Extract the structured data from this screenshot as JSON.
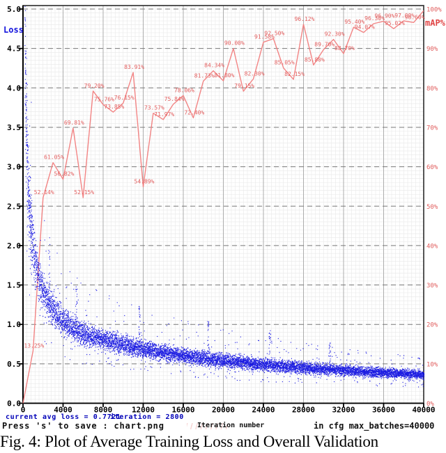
{
  "chart_data": {
    "type": "line+scatter",
    "title": "",
    "x_axis": {
      "label": "Iteration number",
      "min": 0,
      "max": 40000,
      "major_tick_step": 4000,
      "tick_labels": [
        "0",
        "4000",
        "8000",
        "12000",
        "16000",
        "20000",
        "24000",
        "28000",
        "32000",
        "36000",
        "40000"
      ]
    },
    "y_left": {
      "label": "Loss",
      "min": 0.0,
      "max": 5.0,
      "major_tick_step": 0.5,
      "color": "#1414dd",
      "tick_labels": [
        "5.0",
        "4.5",
        "4.0",
        "3.5",
        "3.0",
        "2.5",
        "2.0",
        "1.5",
        "1.0",
        "0.5",
        "0.0"
      ]
    },
    "y_right": {
      "label": "mAP%",
      "min": 0,
      "max": 100,
      "major_tick_step": 10,
      "color": "#e04545",
      "tick_labels": [
        "100%",
        "90%",
        "80%",
        "70%",
        "60%",
        "50%",
        "40%",
        "30%",
        "20%",
        "10%",
        "0%"
      ]
    },
    "grid": {
      "minor_divisions_per_major": 10,
      "minor_color": "#e8e8e8",
      "major_v_color": "#adadad",
      "major_h_color": "#787878",
      "border_color": "#2b2b2b",
      "legend": "none"
    },
    "map_series": {
      "name": "mAP%",
      "color": "#f17d7d",
      "label_color": "#e25d5d",
      "points": [
        {
          "iter": 0,
          "map": 0,
          "label": ""
        },
        {
          "iter": 1000,
          "map": 13.25,
          "label": "13.25%"
        },
        {
          "iter": 2000,
          "map": 52.14,
          "label": "52.14%"
        },
        {
          "iter": 3000,
          "map": 61.05,
          "label": "61.05%"
        },
        {
          "iter": 4000,
          "map": 56.82,
          "label": "56.82%"
        },
        {
          "iter": 5000,
          "map": 69.81,
          "label": "69.81%"
        },
        {
          "iter": 6000,
          "map": 52.15,
          "label": "52.15%"
        },
        {
          "iter": 7000,
          "map": 79.2,
          "label": "79.20%"
        },
        {
          "iter": 8000,
          "map": 75.76,
          "label": "75.76%"
        },
        {
          "iter": 9000,
          "map": 73.85,
          "label": "73.85%"
        },
        {
          "iter": 10000,
          "map": 76.15,
          "label": "76.15%"
        },
        {
          "iter": 11000,
          "map": 83.91,
          "label": "83.91%"
        },
        {
          "iter": 12000,
          "map": 54.89,
          "label": "54.89%"
        },
        {
          "iter": 13000,
          "map": 73.57,
          "label": "73.57%"
        },
        {
          "iter": 14000,
          "map": 71.97,
          "label": "71.97%"
        },
        {
          "iter": 15000,
          "map": 75.84,
          "label": "75.84%"
        },
        {
          "iter": 16000,
          "map": 78.06,
          "label": "78.06%"
        },
        {
          "iter": 17000,
          "map": 72.4,
          "label": "72.40%"
        },
        {
          "iter": 18000,
          "map": 81.73,
          "label": "81.73%"
        },
        {
          "iter": 19000,
          "map": 84.34,
          "label": "84.34%"
        },
        {
          "iter": 20000,
          "map": 81.8,
          "label": "81.80%"
        },
        {
          "iter": 21000,
          "map": 90.0,
          "label": "90.00%"
        },
        {
          "iter": 22000,
          "map": 79.15,
          "label": "79.15%"
        },
        {
          "iter": 23000,
          "map": 82.3,
          "label": "82.30%"
        },
        {
          "iter": 24000,
          "map": 91.58,
          "label": "91.58%"
        },
        {
          "iter": 25000,
          "map": 92.5,
          "label": "92.50%"
        },
        {
          "iter": 26000,
          "map": 85.05,
          "label": "85.05%"
        },
        {
          "iter": 27000,
          "map": 82.15,
          "label": "82.15%"
        },
        {
          "iter": 28000,
          "map": 96.12,
          "label": "96.12%"
        },
        {
          "iter": 29000,
          "map": 85.8,
          "label": "85.80%"
        },
        {
          "iter": 30000,
          "map": 89.7,
          "label": "89.70%"
        },
        {
          "iter": 31000,
          "map": 92.3,
          "label": "92.30%"
        },
        {
          "iter": 32000,
          "map": 88.7,
          "label": "88.70%"
        },
        {
          "iter": 33000,
          "map": 95.4,
          "label": "95.40%"
        },
        {
          "iter": 34000,
          "map": 94.07,
          "label": "94.07%"
        },
        {
          "iter": 35000,
          "map": 96.3,
          "label": "96.30%"
        },
        {
          "iter": 36000,
          "map": 96.9,
          "label": "96.90%"
        },
        {
          "iter": 37000,
          "map": 95.02,
          "label": "95.02%"
        },
        {
          "iter": 38000,
          "map": 97.0,
          "label": "97.00%"
        },
        {
          "iter": 39000,
          "map": 96.6,
          "label": "96.60%"
        },
        {
          "iter": 40000,
          "map": 99.6,
          "label": ""
        }
      ]
    },
    "loss_series": {
      "name": "avg loss",
      "color": "#0a0ae0",
      "envelope": [
        [
          0,
          5.3
        ],
        [
          120,
          4.9
        ],
        [
          250,
          3.9
        ],
        [
          400,
          3.0
        ],
        [
          600,
          2.45
        ],
        [
          1000,
          1.95
        ],
        [
          1600,
          1.55
        ],
        [
          2400,
          1.3
        ],
        [
          3200,
          1.15
        ],
        [
          4000,
          1.03
        ],
        [
          5000,
          0.95
        ],
        [
          6000,
          0.88
        ],
        [
          8000,
          0.8
        ],
        [
          10000,
          0.74
        ],
        [
          12000,
          0.68
        ],
        [
          14000,
          0.64
        ],
        [
          16000,
          0.6
        ],
        [
          18000,
          0.57
        ],
        [
          20000,
          0.54
        ],
        [
          23000,
          0.5
        ],
        [
          26000,
          0.47
        ],
        [
          30000,
          0.43
        ],
        [
          34000,
          0.4
        ],
        [
          37000,
          0.38
        ],
        [
          40000,
          0.36
        ]
      ],
      "noise_band": 0.22,
      "seed": 42,
      "spikes": [
        {
          "iter": 2600,
          "loss": 2.1
        },
        {
          "iter": 5300,
          "loss": 1.6
        },
        {
          "iter": 11600,
          "loss": 1.27
        },
        {
          "iter": 18450,
          "loss": 1.05
        },
        {
          "iter": 24600,
          "loss": 0.93
        },
        {
          "iter": 30600,
          "loss": 0.8
        }
      ]
    }
  },
  "status_bar": {
    "avg_loss_text": "current avg loss = 0.7721",
    "iteration_text": "iteration = 2800",
    "save_hint": "Press 's' to save : chart.png",
    "x_axis_caption": "Iteration number",
    "cfg_text": "in cfg max_batches=40000"
  },
  "caption": {
    "text": "Fig. 4: Plot of Average Training Loss and Overall Validation"
  }
}
